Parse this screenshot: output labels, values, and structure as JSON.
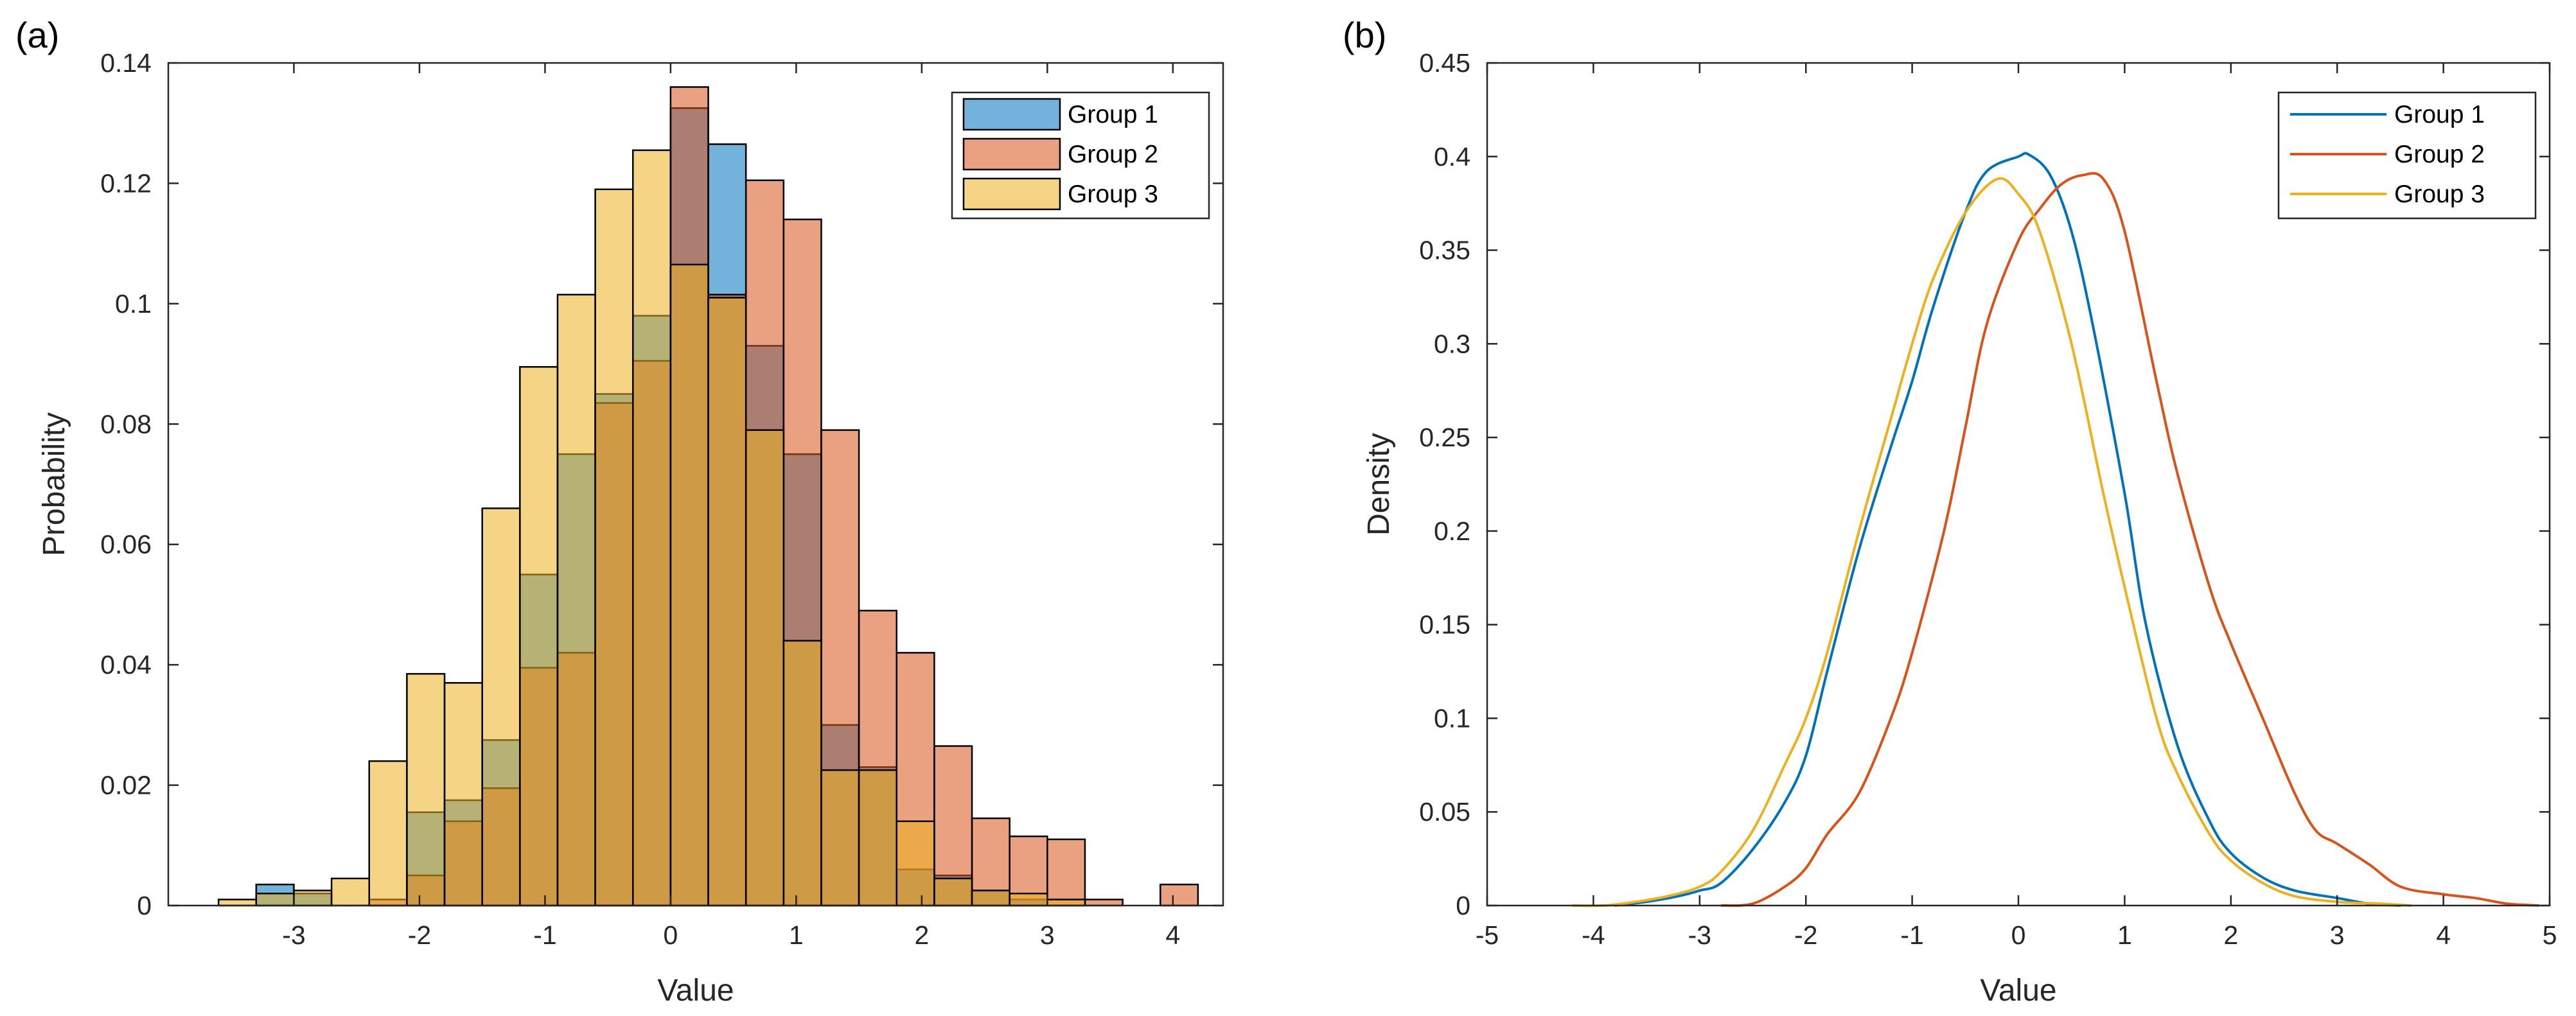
{
  "figure": {
    "panels": [
      "(a)",
      "(b)"
    ]
  },
  "chart_data": [
    {
      "panel": "(a)",
      "type": "bar",
      "subtype": "overlaid-histogram",
      "title": "",
      "xlabel": "Value",
      "ylabel": "Probability",
      "xlim": [
        -4.0,
        4.4
      ],
      "ylim": [
        0,
        0.14
      ],
      "xticks": [
        -3,
        -2,
        -1,
        0,
        1,
        2,
        3,
        4
      ],
      "yticks": [
        0,
        0.02,
        0.04,
        0.06,
        0.08,
        0.1,
        0.12,
        0.14
      ],
      "xtick_labels": [
        "-3",
        "-2",
        "-1",
        "0",
        "1",
        "2",
        "3",
        "4"
      ],
      "ytick_labels": [
        "0",
        "0.02",
        "0.04",
        "0.06",
        "0.08",
        "0.1",
        "0.12",
        "0.14"
      ],
      "legend_position": "top-right",
      "grid": false,
      "bin_width": 0.3,
      "series": [
        {
          "name": "Group 1",
          "color": "#0072BD",
          "bin_starts": [
            -3.3,
            -3.0,
            -2.1,
            -1.8,
            -1.5,
            -1.2,
            -0.9,
            -0.6,
            -0.3,
            0.0,
            0.3,
            0.6,
            0.9,
            1.2,
            1.5,
            1.8,
            2.1,
            2.4,
            2.7
          ],
          "values": [
            0.0035,
            0.002,
            0.0155,
            0.0175,
            0.0275,
            0.055,
            0.075,
            0.085,
            0.098,
            0.1325,
            0.1265,
            0.093,
            0.075,
            0.03,
            0.023,
            0.006,
            0.005,
            0.0025,
            0.001
          ]
        },
        {
          "name": "Group 2",
          "color": "#D95319",
          "bin_starts": [
            -2.4,
            -2.1,
            -1.8,
            -1.5,
            -1.2,
            -0.9,
            -0.6,
            -0.3,
            0.0,
            0.3,
            0.6,
            0.9,
            1.2,
            1.5,
            1.8,
            2.1,
            2.4,
            2.7,
            3.0,
            3.3,
            3.9
          ],
          "values": [
            0.001,
            0.005,
            0.014,
            0.0195,
            0.0395,
            0.042,
            0.0835,
            0.0905,
            0.136,
            0.1015,
            0.1205,
            0.114,
            0.079,
            0.049,
            0.042,
            0.0265,
            0.0145,
            0.0115,
            0.011,
            0.001,
            0.0035
          ]
        },
        {
          "name": "Group 3",
          "color": "#EDB120",
          "bin_starts": [
            -3.6,
            -3.3,
            -3.0,
            -2.7,
            -2.4,
            -2.1,
            -1.8,
            -1.5,
            -1.2,
            -0.9,
            -0.6,
            -0.3,
            0.0,
            0.3,
            0.6,
            0.9,
            1.2,
            1.5,
            1.8,
            2.1,
            2.4,
            2.7,
            3.0
          ],
          "values": [
            0.001,
            0.002,
            0.0025,
            0.0045,
            0.024,
            0.0385,
            0.037,
            0.066,
            0.0895,
            0.1015,
            0.119,
            0.1255,
            0.1065,
            0.101,
            0.079,
            0.044,
            0.0225,
            0.0225,
            0.014,
            0.0045,
            0.0025,
            0.002,
            0.001
          ]
        }
      ]
    },
    {
      "panel": "(b)",
      "type": "line",
      "subtype": "kernel-density",
      "title": "",
      "xlabel": "Value",
      "ylabel": "Density",
      "xlim": [
        -5,
        5
      ],
      "ylim": [
        0,
        0.45
      ],
      "xticks": [
        -5,
        -4,
        -3,
        -2,
        -1,
        0,
        1,
        2,
        3,
        4,
        5
      ],
      "yticks": [
        0,
        0.05,
        0.1,
        0.15,
        0.2,
        0.25,
        0.3,
        0.35,
        0.4,
        0.45
      ],
      "xtick_labels": [
        "-5",
        "-4",
        "-3",
        "-2",
        "-1",
        "0",
        "1",
        "2",
        "3",
        "4",
        "5"
      ],
      "ytick_labels": [
        "0",
        "0.05",
        "0.1",
        "0.15",
        "0.2",
        "0.25",
        "0.3",
        "0.35",
        "0.4",
        "0.45"
      ],
      "legend_position": "top-right",
      "grid": false,
      "series": [
        {
          "name": "Group 1",
          "color": "#0072BD",
          "x": [
            -3.8,
            -3.5,
            -3.2,
            -3.0,
            -2.8,
            -2.5,
            -2.2,
            -2.0,
            -1.8,
            -1.5,
            -1.2,
            -1.0,
            -0.8,
            -0.5,
            -0.3,
            0.0,
            0.1,
            0.3,
            0.5,
            0.7,
            1.0,
            1.2,
            1.5,
            1.8,
            2.0,
            2.3,
            2.6,
            3.0,
            3.3,
            3.6
          ],
          "y": [
            0.0,
            0.002,
            0.005,
            0.008,
            0.012,
            0.03,
            0.055,
            0.08,
            0.125,
            0.19,
            0.245,
            0.28,
            0.32,
            0.37,
            0.392,
            0.4,
            0.401,
            0.39,
            0.36,
            0.31,
            0.22,
            0.15,
            0.085,
            0.045,
            0.028,
            0.015,
            0.008,
            0.004,
            0.001,
            0.0
          ]
        },
        {
          "name": "Group 2",
          "color": "#D95319",
          "x": [
            -2.8,
            -2.5,
            -2.2,
            -2.0,
            -1.8,
            -1.5,
            -1.2,
            -1.0,
            -0.7,
            -0.5,
            -0.3,
            0.0,
            0.2,
            0.4,
            0.6,
            0.8,
            1.0,
            1.3,
            1.5,
            1.8,
            2.0,
            2.3,
            2.6,
            2.8,
            3.0,
            3.3,
            3.6,
            4.0,
            4.3,
            4.6,
            4.9
          ],
          "y": [
            0.0,
            0.001,
            0.01,
            0.02,
            0.038,
            0.06,
            0.1,
            0.135,
            0.2,
            0.255,
            0.31,
            0.355,
            0.372,
            0.385,
            0.39,
            0.388,
            0.36,
            0.28,
            0.23,
            0.17,
            0.14,
            0.1,
            0.06,
            0.04,
            0.033,
            0.022,
            0.01,
            0.006,
            0.004,
            0.001,
            0.0
          ]
        },
        {
          "name": "Group 3",
          "color": "#EDB120",
          "x": [
            -4.2,
            -3.9,
            -3.6,
            -3.3,
            -3.0,
            -2.8,
            -2.5,
            -2.2,
            -2.0,
            -1.8,
            -1.5,
            -1.2,
            -1.0,
            -0.8,
            -0.5,
            -0.2,
            0.0,
            0.2,
            0.5,
            0.8,
            1.0,
            1.3,
            1.5,
            1.8,
            2.0,
            2.3,
            2.6,
            3.0,
            3.4,
            3.7
          ],
          "y": [
            0.0,
            0.0,
            0.002,
            0.005,
            0.01,
            0.018,
            0.04,
            0.075,
            0.1,
            0.135,
            0.2,
            0.26,
            0.3,
            0.335,
            0.37,
            0.388,
            0.38,
            0.36,
            0.3,
            0.22,
            0.17,
            0.1,
            0.07,
            0.038,
            0.024,
            0.012,
            0.005,
            0.002,
            0.001,
            0.0
          ]
        }
      ]
    }
  ]
}
